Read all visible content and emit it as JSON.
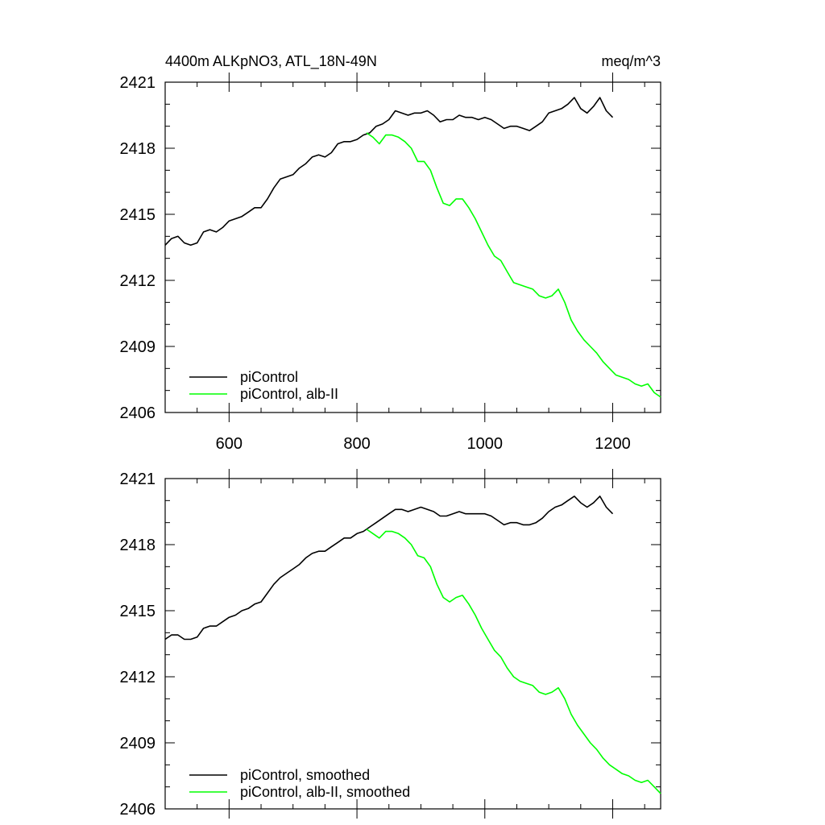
{
  "chart_data": [
    {
      "type": "line",
      "title_left": "4400m ALKpNO3, ATL_18N-49N",
      "title_right": "meq/m^3",
      "xlabel": "",
      "ylabel": "",
      "xlim": [
        500,
        1275
      ],
      "ylim": [
        2406,
        2421
      ],
      "xticks": [
        600,
        800,
        1000,
        1200
      ],
      "xtick_labels": [
        "600",
        "800",
        "1000",
        "1200"
      ],
      "yticks": [
        2406,
        2409,
        2412,
        2415,
        2418,
        2421
      ],
      "ytick_labels": [
        "2406",
        "2409",
        "2412",
        "2415",
        "2418",
        "2421"
      ],
      "show_xtick_labels": true,
      "legend_position": "bottom-left",
      "series": [
        {
          "name": "piControl",
          "color": "#000000",
          "x": [
            500,
            510,
            520,
            530,
            540,
            550,
            560,
            570,
            580,
            590,
            600,
            610,
            620,
            630,
            640,
            650,
            660,
            670,
            680,
            690,
            700,
            710,
            720,
            730,
            740,
            750,
            760,
            770,
            780,
            790,
            800,
            810,
            820,
            830,
            840,
            850,
            860,
            870,
            880,
            890,
            900,
            910,
            920,
            930,
            940,
            950,
            960,
            970,
            980,
            990,
            1000,
            1010,
            1020,
            1030,
            1040,
            1050,
            1060,
            1070,
            1080,
            1090,
            1100,
            1110,
            1120,
            1130,
            1140,
            1150,
            1160,
            1170,
            1180,
            1190,
            1200
          ],
          "values": [
            2413.6,
            2413.9,
            2414.0,
            2413.7,
            2413.6,
            2413.7,
            2414.2,
            2414.3,
            2414.2,
            2414.4,
            2414.7,
            2414.8,
            2414.9,
            2415.1,
            2415.3,
            2415.3,
            2415.7,
            2416.2,
            2416.6,
            2416.7,
            2416.8,
            2417.1,
            2417.3,
            2417.6,
            2417.7,
            2417.6,
            2417.8,
            2418.2,
            2418.3,
            2418.3,
            2418.4,
            2418.6,
            2418.7,
            2419.0,
            2419.1,
            2419.3,
            2419.7,
            2419.6,
            2419.5,
            2419.6,
            2419.6,
            2419.7,
            2419.5,
            2419.2,
            2419.3,
            2419.3,
            2419.5,
            2419.4,
            2419.4,
            2419.3,
            2419.4,
            2419.3,
            2419.1,
            2418.9,
            2419.0,
            2419.0,
            2418.9,
            2418.8,
            2419.0,
            2419.2,
            2419.6,
            2419.7,
            2419.8,
            2420.0,
            2420.3,
            2419.8,
            2419.6,
            2419.9,
            2420.3,
            2419.7,
            2419.4
          ]
        },
        {
          "name": "piControl, alb-II",
          "color": "#00ff00",
          "x": [
            815,
            825,
            835,
            845,
            855,
            865,
            875,
            885,
            895,
            905,
            915,
            925,
            935,
            945,
            955,
            965,
            975,
            985,
            995,
            1005,
            1015,
            1025,
            1035,
            1045,
            1055,
            1065,
            1075,
            1085,
            1095,
            1105,
            1115,
            1125,
            1135,
            1145,
            1155,
            1165,
            1175,
            1185,
            1195,
            1205,
            1215,
            1225,
            1235,
            1245,
            1255,
            1265,
            1275
          ],
          "values": [
            2418.7,
            2418.5,
            2418.2,
            2418.6,
            2418.6,
            2418.5,
            2418.3,
            2418.0,
            2417.4,
            2417.4,
            2417.0,
            2416.2,
            2415.5,
            2415.4,
            2415.7,
            2415.7,
            2415.3,
            2414.8,
            2414.2,
            2413.6,
            2413.1,
            2412.9,
            2412.4,
            2411.9,
            2411.8,
            2411.7,
            2411.6,
            2411.3,
            2411.2,
            2411.3,
            2411.6,
            2411.0,
            2410.2,
            2409.7,
            2409.3,
            2409.0,
            2408.7,
            2408.3,
            2408.0,
            2407.7,
            2407.6,
            2407.5,
            2407.3,
            2407.2,
            2407.3,
            2406.9,
            2406.7
          ]
        }
      ]
    },
    {
      "type": "line",
      "xlim": [
        500,
        1275
      ],
      "ylim": [
        2406,
        2421
      ],
      "xticks": [
        600,
        800,
        1000,
        1200
      ],
      "yticks": [
        2406,
        2409,
        2412,
        2415,
        2418,
        2421
      ],
      "ytick_labels": [
        "2406",
        "2409",
        "2412",
        "2415",
        "2418",
        "2421"
      ],
      "show_xtick_labels": false,
      "legend_position": "bottom-left",
      "series": [
        {
          "name": "piControl, smoothed",
          "color": "#000000",
          "x": [
            500,
            510,
            520,
            530,
            540,
            550,
            560,
            570,
            580,
            590,
            600,
            610,
            620,
            630,
            640,
            650,
            660,
            670,
            680,
            690,
            700,
            710,
            720,
            730,
            740,
            750,
            760,
            770,
            780,
            790,
            800,
            810,
            820,
            830,
            840,
            850,
            860,
            870,
            880,
            890,
            900,
            910,
            920,
            930,
            940,
            950,
            960,
            970,
            980,
            990,
            1000,
            1010,
            1020,
            1030,
            1040,
            1050,
            1060,
            1070,
            1080,
            1090,
            1100,
            1110,
            1120,
            1130,
            1140,
            1150,
            1160,
            1170,
            1180,
            1190,
            1200
          ],
          "values": [
            2413.7,
            2413.9,
            2413.9,
            2413.7,
            2413.7,
            2413.8,
            2414.2,
            2414.3,
            2414.3,
            2414.5,
            2414.7,
            2414.8,
            2415.0,
            2415.1,
            2415.3,
            2415.4,
            2415.8,
            2416.2,
            2416.5,
            2416.7,
            2416.9,
            2417.1,
            2417.4,
            2417.6,
            2417.7,
            2417.7,
            2417.9,
            2418.1,
            2418.3,
            2418.3,
            2418.5,
            2418.6,
            2418.8,
            2419.0,
            2419.2,
            2419.4,
            2419.6,
            2419.6,
            2419.5,
            2419.6,
            2419.7,
            2419.6,
            2419.5,
            2419.3,
            2419.3,
            2419.4,
            2419.5,
            2419.4,
            2419.4,
            2419.4,
            2419.4,
            2419.3,
            2419.1,
            2418.9,
            2419.0,
            2419.0,
            2418.9,
            2418.9,
            2419.0,
            2419.2,
            2419.5,
            2419.7,
            2419.8,
            2420.0,
            2420.2,
            2419.9,
            2419.7,
            2419.9,
            2420.2,
            2419.7,
            2419.4
          ]
        },
        {
          "name": "piControl, alb-II, smoothed",
          "color": "#00ff00",
          "x": [
            815,
            825,
            835,
            845,
            855,
            865,
            875,
            885,
            895,
            905,
            915,
            925,
            935,
            945,
            955,
            965,
            975,
            985,
            995,
            1005,
            1015,
            1025,
            1035,
            1045,
            1055,
            1065,
            1075,
            1085,
            1095,
            1105,
            1115,
            1125,
            1135,
            1145,
            1155,
            1165,
            1175,
            1185,
            1195,
            1205,
            1215,
            1225,
            1235,
            1245,
            1255,
            1265,
            1275
          ],
          "values": [
            2418.7,
            2418.5,
            2418.3,
            2418.6,
            2418.6,
            2418.5,
            2418.3,
            2418.0,
            2417.5,
            2417.4,
            2417.0,
            2416.2,
            2415.6,
            2415.4,
            2415.6,
            2415.7,
            2415.3,
            2414.8,
            2414.2,
            2413.7,
            2413.2,
            2412.9,
            2412.4,
            2412.0,
            2411.8,
            2411.7,
            2411.6,
            2411.3,
            2411.2,
            2411.3,
            2411.5,
            2411.0,
            2410.3,
            2409.8,
            2409.4,
            2409.0,
            2408.7,
            2408.3,
            2408.0,
            2407.8,
            2407.6,
            2407.5,
            2407.3,
            2407.2,
            2407.3,
            2407.0,
            2406.7
          ]
        }
      ]
    }
  ]
}
